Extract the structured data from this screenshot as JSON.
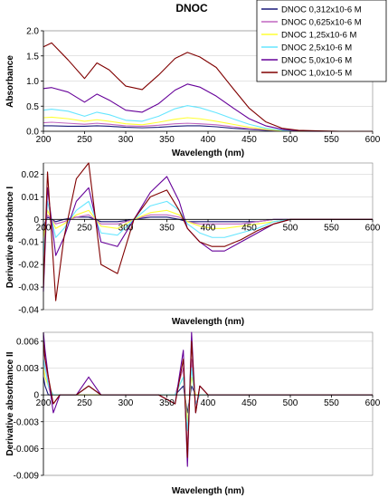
{
  "figure_title": "DNOC",
  "legend": [
    {
      "label": "DNOC 0,312x10-6 M",
      "color": "#1a1a7a"
    },
    {
      "label": "DNOC 0,625x10-6 M",
      "color": "#c066c0"
    },
    {
      "label": "DNOC 1,25x10-6 M",
      "color": "#ffff33"
    },
    {
      "label": "DNOC 2,5x10-6 M",
      "color": "#66e6ff"
    },
    {
      "label": "DNOC 5,0x10-6 M",
      "color": "#660099"
    },
    {
      "label": "DNOC 1,0x10-5 M",
      "color": "#800000"
    }
  ],
  "chart_data": [
    {
      "type": "line",
      "title": "DNOC",
      "xlabel": "Wavelength (nm)",
      "ylabel": "Absorbance",
      "xlim": [
        200,
        600
      ],
      "ylim": [
        0,
        2.0
      ],
      "xticks": [
        "200",
        "250",
        "300",
        "350",
        "400",
        "450",
        "500",
        "550",
        "600"
      ],
      "yticks": [
        "0.0",
        "0.5",
        "1.0",
        "1.5",
        "2.0"
      ],
      "series": [
        {
          "name": "DNOC 0,312x10-6 M",
          "x": [
            200,
            210,
            230,
            250,
            265,
            280,
            300,
            320,
            340,
            360,
            375,
            390,
            410,
            430,
            450,
            470,
            490,
            510,
            530,
            560,
            600
          ],
          "y": [
            0.11,
            0.11,
            0.1,
            0.1,
            0.11,
            0.1,
            0.08,
            0.07,
            0.08,
            0.1,
            0.11,
            0.11,
            0.09,
            0.06,
            0.04,
            0.02,
            0.01,
            0.0,
            0.0,
            0.0,
            0.0
          ]
        },
        {
          "name": "DNOC 0,625x10-6 M",
          "x": [
            200,
            210,
            230,
            250,
            265,
            280,
            300,
            320,
            340,
            360,
            375,
            390,
            410,
            430,
            450,
            470,
            490,
            510,
            530,
            560,
            600
          ],
          "y": [
            0.17,
            0.18,
            0.16,
            0.14,
            0.16,
            0.14,
            0.11,
            0.1,
            0.12,
            0.15,
            0.16,
            0.15,
            0.13,
            0.09,
            0.05,
            0.03,
            0.01,
            0.0,
            0.0,
            0.0,
            0.0
          ]
        },
        {
          "name": "DNOC 1,25x10-6 M",
          "x": [
            200,
            210,
            230,
            250,
            265,
            280,
            300,
            320,
            340,
            360,
            375,
            390,
            410,
            430,
            450,
            470,
            490,
            510,
            530,
            560,
            600
          ],
          "y": [
            0.27,
            0.28,
            0.25,
            0.2,
            0.23,
            0.2,
            0.15,
            0.13,
            0.18,
            0.24,
            0.27,
            0.25,
            0.2,
            0.14,
            0.08,
            0.04,
            0.01,
            0.0,
            0.0,
            0.0,
            0.0
          ]
        },
        {
          "name": "DNOC 2,5x10-6 M",
          "x": [
            200,
            210,
            230,
            250,
            265,
            280,
            300,
            320,
            340,
            360,
            375,
            390,
            410,
            430,
            450,
            470,
            490,
            510,
            530,
            560,
            600
          ],
          "y": [
            0.42,
            0.44,
            0.4,
            0.3,
            0.38,
            0.33,
            0.22,
            0.2,
            0.3,
            0.45,
            0.51,
            0.47,
            0.37,
            0.25,
            0.14,
            0.06,
            0.02,
            0.01,
            0.0,
            0.0,
            0.0
          ]
        },
        {
          "name": "DNOC 5,0x10-6 M",
          "x": [
            200,
            210,
            230,
            250,
            265,
            280,
            300,
            320,
            340,
            360,
            375,
            390,
            410,
            430,
            450,
            470,
            490,
            510,
            530,
            560,
            600
          ],
          "y": [
            0.85,
            0.87,
            0.78,
            0.58,
            0.74,
            0.62,
            0.42,
            0.38,
            0.55,
            0.82,
            0.94,
            0.88,
            0.7,
            0.47,
            0.25,
            0.11,
            0.04,
            0.01,
            0.0,
            0.0,
            0.0
          ]
        },
        {
          "name": "DNOC 1,0x10-5 M",
          "x": [
            200,
            210,
            230,
            250,
            265,
            280,
            300,
            320,
            340,
            360,
            375,
            390,
            410,
            430,
            450,
            470,
            490,
            510,
            530,
            560,
            600
          ],
          "y": [
            1.68,
            1.76,
            1.42,
            1.05,
            1.36,
            1.22,
            0.9,
            0.83,
            1.12,
            1.45,
            1.57,
            1.48,
            1.27,
            0.86,
            0.46,
            0.19,
            0.06,
            0.02,
            0.01,
            0.0,
            0.0
          ]
        }
      ]
    },
    {
      "type": "line",
      "xlabel": "Wavelength (nm)",
      "ylabel": "Derivative absorbance I",
      "xlim": [
        200,
        600
      ],
      "ylim": [
        -0.04,
        0.025
      ],
      "xticks": [
        "200",
        "250",
        "300",
        "350",
        "400",
        "450",
        "500",
        "550",
        "600"
      ],
      "yticks": [
        "-0.04",
        "-0.03",
        "-0.02",
        "-0.01",
        "0",
        "0.01",
        "0.02"
      ],
      "series": [
        {
          "name": "DNOC 0,312x10-6 M",
          "x": [
            200,
            205,
            215,
            225,
            240,
            255,
            270,
            290,
            310,
            330,
            350,
            365,
            375,
            390,
            405,
            420,
            440,
            460,
            480,
            500,
            520,
            560,
            600
          ],
          "y": [
            -0.003,
            0.001,
            -0.001,
            0.0,
            0.001,
            0.001,
            -0.001,
            -0.001,
            0.0,
            0.001,
            0.001,
            0.0,
            -0.001,
            -0.001,
            -0.001,
            -0.001,
            -0.001,
            -0.001,
            0.0,
            0.0,
            0.0,
            0.0,
            0.0
          ]
        },
        {
          "name": "DNOC 0,625x10-6 M",
          "x": [
            200,
            205,
            215,
            225,
            240,
            255,
            270,
            290,
            310,
            330,
            350,
            365,
            375,
            390,
            405,
            420,
            440,
            460,
            480,
            500,
            520,
            560,
            600
          ],
          "y": [
            -0.005,
            0.002,
            -0.002,
            -0.001,
            0.001,
            0.002,
            -0.002,
            -0.002,
            0.0,
            0.002,
            0.002,
            0.001,
            -0.001,
            -0.002,
            -0.002,
            -0.002,
            -0.002,
            -0.001,
            0.0,
            0.0,
            0.0,
            0.0,
            0.0
          ]
        },
        {
          "name": "DNOC 1,25x10-6 M",
          "x": [
            200,
            205,
            215,
            225,
            240,
            255,
            270,
            290,
            310,
            330,
            350,
            365,
            375,
            390,
            405,
            420,
            440,
            460,
            480,
            500,
            520,
            560,
            600
          ],
          "y": [
            -0.008,
            0.004,
            -0.004,
            -0.002,
            0.002,
            0.004,
            -0.003,
            -0.004,
            0.0,
            0.003,
            0.004,
            0.002,
            -0.001,
            -0.003,
            -0.004,
            -0.004,
            -0.003,
            -0.002,
            -0.001,
            0.0,
            0.0,
            0.0,
            0.0
          ]
        },
        {
          "name": "DNOC 2,5x10-6 M",
          "x": [
            200,
            205,
            215,
            225,
            240,
            255,
            270,
            290,
            310,
            330,
            350,
            365,
            375,
            390,
            405,
            420,
            440,
            460,
            480,
            500,
            520,
            560,
            600
          ],
          "y": [
            -0.016,
            0.008,
            -0.008,
            -0.004,
            0.004,
            0.008,
            -0.006,
            -0.007,
            0.0,
            0.006,
            0.008,
            0.004,
            -0.002,
            -0.006,
            -0.008,
            -0.008,
            -0.006,
            -0.004,
            -0.001,
            0.0,
            0.0,
            0.0,
            0.0
          ]
        },
        {
          "name": "DNOC 5,0x10-6 M",
          "x": [
            200,
            205,
            215,
            225,
            240,
            255,
            270,
            290,
            310,
            330,
            350,
            365,
            375,
            390,
            405,
            420,
            440,
            460,
            480,
            500,
            520,
            560,
            600
          ],
          "y": [
            -0.032,
            0.014,
            -0.016,
            -0.008,
            0.008,
            0.014,
            -0.01,
            -0.012,
            0.0,
            0.012,
            0.019,
            0.008,
            -0.004,
            -0.01,
            -0.014,
            -0.014,
            -0.01,
            -0.006,
            -0.002,
            0.0,
            0.0,
            0.0,
            0.0
          ]
        },
        {
          "name": "DNOC 1,0x10-5 M",
          "x": [
            200,
            205,
            215,
            225,
            240,
            255,
            270,
            290,
            310,
            330,
            350,
            365,
            375,
            390,
            405,
            420,
            440,
            460,
            480,
            500,
            520,
            560,
            600
          ],
          "y": [
            -0.03,
            0.021,
            -0.036,
            -0.008,
            0.018,
            0.025,
            -0.02,
            -0.024,
            0.0,
            0.01,
            0.013,
            0.004,
            -0.004,
            -0.01,
            -0.012,
            -0.012,
            -0.009,
            -0.005,
            -0.002,
            0.0,
            0.0,
            0.0,
            0.0
          ]
        }
      ]
    },
    {
      "type": "line",
      "xlabel": "Wavelength (nm)",
      "ylabel": "Derivative absorbance II",
      "xlim": [
        200,
        600
      ],
      "ylim": [
        -0.009,
        0.007
      ],
      "xticks": [
        "200",
        "250",
        "300",
        "350",
        "400",
        "450",
        "500",
        "550",
        "600"
      ],
      "yticks": [
        "-0.009",
        "-0.006",
        "-0.003",
        "0",
        "0.003",
        "0.006"
      ],
      "series": [
        {
          "name": "DNOC 0,312x10-6 M",
          "x": [
            200,
            202,
            206,
            212,
            220,
            240,
            255,
            270,
            300,
            340,
            360,
            370,
            375,
            380,
            385,
            390,
            400,
            450,
            500,
            550,
            600
          ],
          "y": [
            0.002,
            0.001,
            0.0,
            0.0,
            0.0,
            0.0,
            0.0,
            0.0,
            0.0,
            0.0,
            0.0,
            0.001,
            -0.002,
            0.001,
            0.0,
            0.0,
            0.0,
            0.0,
            0.0,
            0.0,
            0.0
          ]
        },
        {
          "name": "DNOC 0,625x10-6 M",
          "x": [
            200,
            202,
            206,
            212,
            220,
            240,
            255,
            270,
            300,
            340,
            360,
            370,
            375,
            380,
            385,
            390,
            400,
            450,
            500,
            550,
            600
          ],
          "y": [
            0.005,
            0.004,
            0.001,
            -0.001,
            0.0,
            0.0,
            0.001,
            0.0,
            0.0,
            0.0,
            0.0,
            0.003,
            -0.006,
            0.004,
            -0.001,
            0.0,
            0.0,
            0.0,
            0.0,
            0.0,
            0.0
          ]
        },
        {
          "name": "DNOC 1,25x10-6 M",
          "x": [
            200,
            202,
            206,
            212,
            220,
            240,
            255,
            270,
            300,
            340,
            360,
            370,
            375,
            380,
            385,
            390,
            400,
            450,
            500,
            550,
            600
          ],
          "y": [
            0.003,
            0.002,
            0.001,
            0.0,
            0.0,
            0.0,
            0.0,
            0.0,
            0.0,
            0.0,
            0.0,
            0.002,
            -0.003,
            0.002,
            0.0,
            0.0,
            0.0,
            0.0,
            0.0,
            0.0,
            0.0
          ]
        },
        {
          "name": "DNOC 2,5x10-6 M",
          "x": [
            200,
            202,
            206,
            212,
            220,
            240,
            255,
            270,
            300,
            340,
            360,
            370,
            375,
            380,
            385,
            390,
            400,
            450,
            500,
            550,
            600
          ],
          "y": [
            0.004,
            0.003,
            0.001,
            0.0,
            0.0,
            0.0,
            0.001,
            0.0,
            0.0,
            0.0,
            0.0,
            0.002,
            -0.004,
            0.003,
            -0.001,
            0.0,
            0.0,
            0.0,
            0.0,
            0.0,
            0.0
          ]
        },
        {
          "name": "DNOC 5,0x10-6 M",
          "x": [
            200,
            202,
            206,
            212,
            220,
            240,
            255,
            270,
            300,
            340,
            360,
            370,
            375,
            380,
            385,
            390,
            400,
            450,
            500,
            550,
            600
          ],
          "y": [
            0.007,
            0.005,
            0.002,
            -0.002,
            0.0,
            0.0,
            0.002,
            0.0,
            0.0,
            0.0,
            -0.001,
            0.005,
            -0.008,
            0.007,
            -0.002,
            0.001,
            0.0,
            0.0,
            0.0,
            0.0,
            0.0
          ]
        },
        {
          "name": "DNOC 1,0x10-5 M",
          "x": [
            200,
            202,
            206,
            212,
            220,
            240,
            255,
            270,
            300,
            340,
            360,
            370,
            375,
            380,
            385,
            390,
            400,
            450,
            500,
            550,
            600
          ],
          "y": [
            0.006,
            0.004,
            0.002,
            -0.001,
            0.0,
            0.0,
            0.001,
            0.0,
            0.0,
            0.0,
            -0.001,
            0.004,
            -0.007,
            0.006,
            -0.002,
            0.001,
            0.0,
            0.0,
            0.0,
            0.0,
            0.0
          ]
        }
      ]
    }
  ]
}
